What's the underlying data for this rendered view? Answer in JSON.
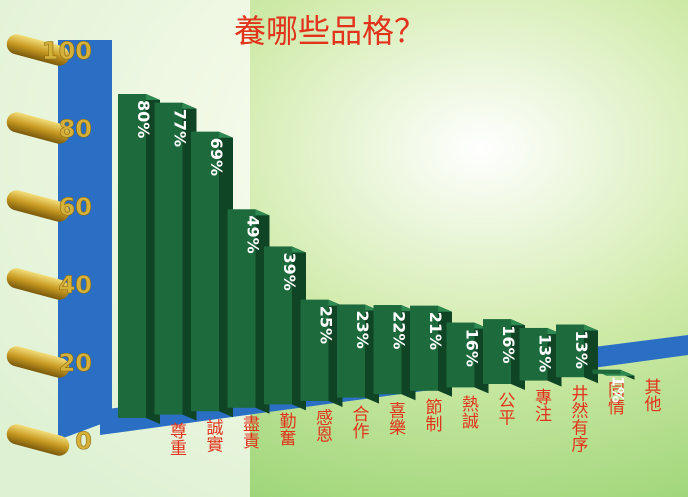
{
  "chart_data": {
    "type": "bar3d",
    "title": "養哪些品格？",
    "categories": [
      "尊重",
      "誠實",
      "盡責",
      "勤奮",
      "感恩",
      "合作",
      "喜樂",
      "節制",
      "熱誠",
      "公平",
      "專注",
      "井然有序",
      "同情",
      "其他"
    ],
    "values": [
      80,
      77,
      69,
      49,
      39,
      25,
      23,
      22,
      21,
      16,
      16,
      13,
      13,
      1
    ],
    "value_labels": [
      "80%",
      "77%",
      "69%",
      "49%",
      "39%",
      "25%",
      "23%",
      "22%",
      "21%",
      "16%",
      "16%",
      "13%",
      "13%",
      "1%"
    ],
    "color": "#1d6a3c",
    "ylim": [
      0,
      100
    ],
    "yticks": [
      0,
      20,
      40,
      60,
      80,
      100
    ]
  }
}
